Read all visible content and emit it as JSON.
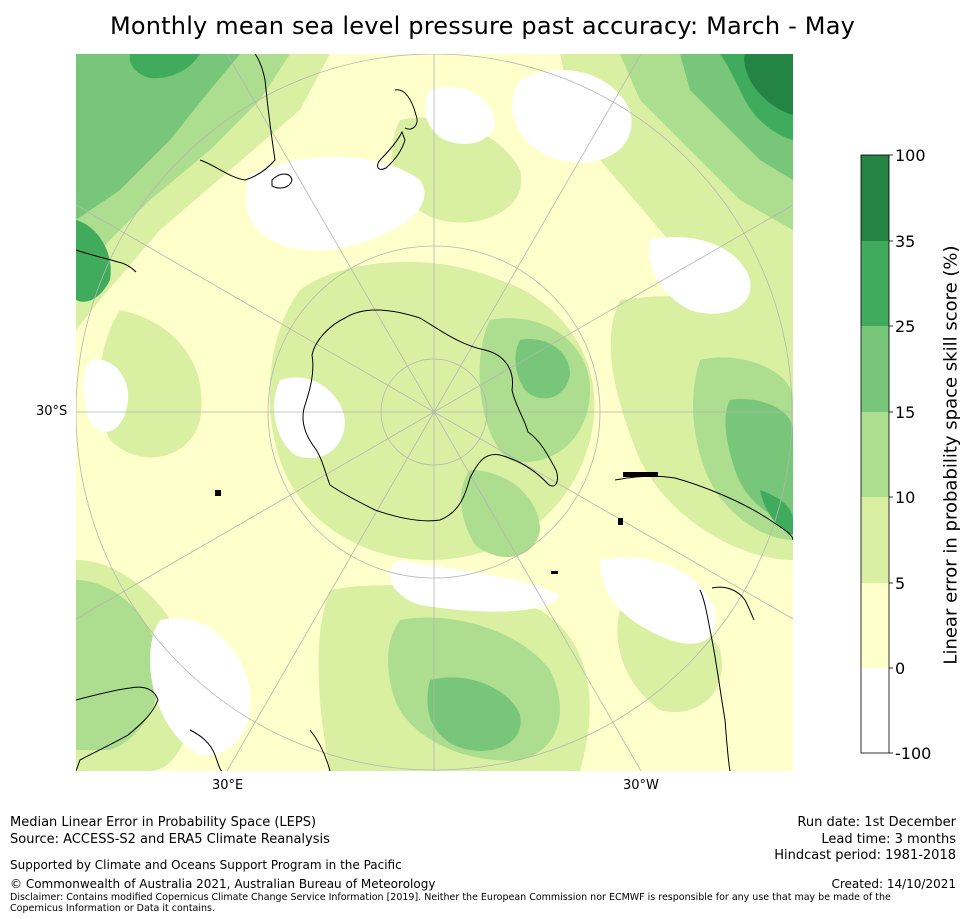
{
  "title": "Monthly mean sea level pressure past accuracy: March - May",
  "map": {
    "latitude_label": "30°S",
    "longitude_labels": [
      "30°E",
      "30°W"
    ],
    "colors": {
      "ocean_white": "#ffffff",
      "light_yellow": "#ffffcc",
      "yellow_green": "#d9f0a3",
      "light_green": "#addd8e",
      "mid_green": "#78c679",
      "green": "#41ab5d",
      "dark_green": "#238443"
    }
  },
  "colorbar": {
    "label": "Linear error in probability space skill score (%)",
    "ticks": [
      "-100",
      "0",
      "5",
      "10",
      "15",
      "25",
      "35",
      "100"
    ],
    "bins": [
      {
        "range": "-100 to 0",
        "color": "#ffffff"
      },
      {
        "range": "0 to 5",
        "color": "#ffffcc"
      },
      {
        "range": "5 to 10",
        "color": "#d9f0a3"
      },
      {
        "range": "10 to 15",
        "color": "#addd8e"
      },
      {
        "range": "15 to 25",
        "color": "#78c679"
      },
      {
        "range": "25 to 35",
        "color": "#41ab5d"
      },
      {
        "range": "35 to 100",
        "color": "#238443"
      }
    ]
  },
  "footer": {
    "line1": "Median Linear Error in Probability Space (LEPS)",
    "line2": "Source: ACCESS-S2 and ERA5 Climate Reanalysis",
    "support": "Supported by Climate and Oceans Support Program in the Pacific",
    "copyright": "© Commonwealth of Australia 2021, Australian Bureau of Meteorology",
    "disclaimer": "Disclaimer: Contains modified Copernicus Climate Change Service Information [2019]. Neither the European Commission nor ECMWF is responsible for any use that may be made of the Copernicus Information or Data it contains.",
    "run_date": "Run date: 1st December",
    "lead_time": "Lead time: 3 months",
    "hindcast": "Hindcast period: 1981-2018",
    "created": "Created: 14/10/2021"
  }
}
